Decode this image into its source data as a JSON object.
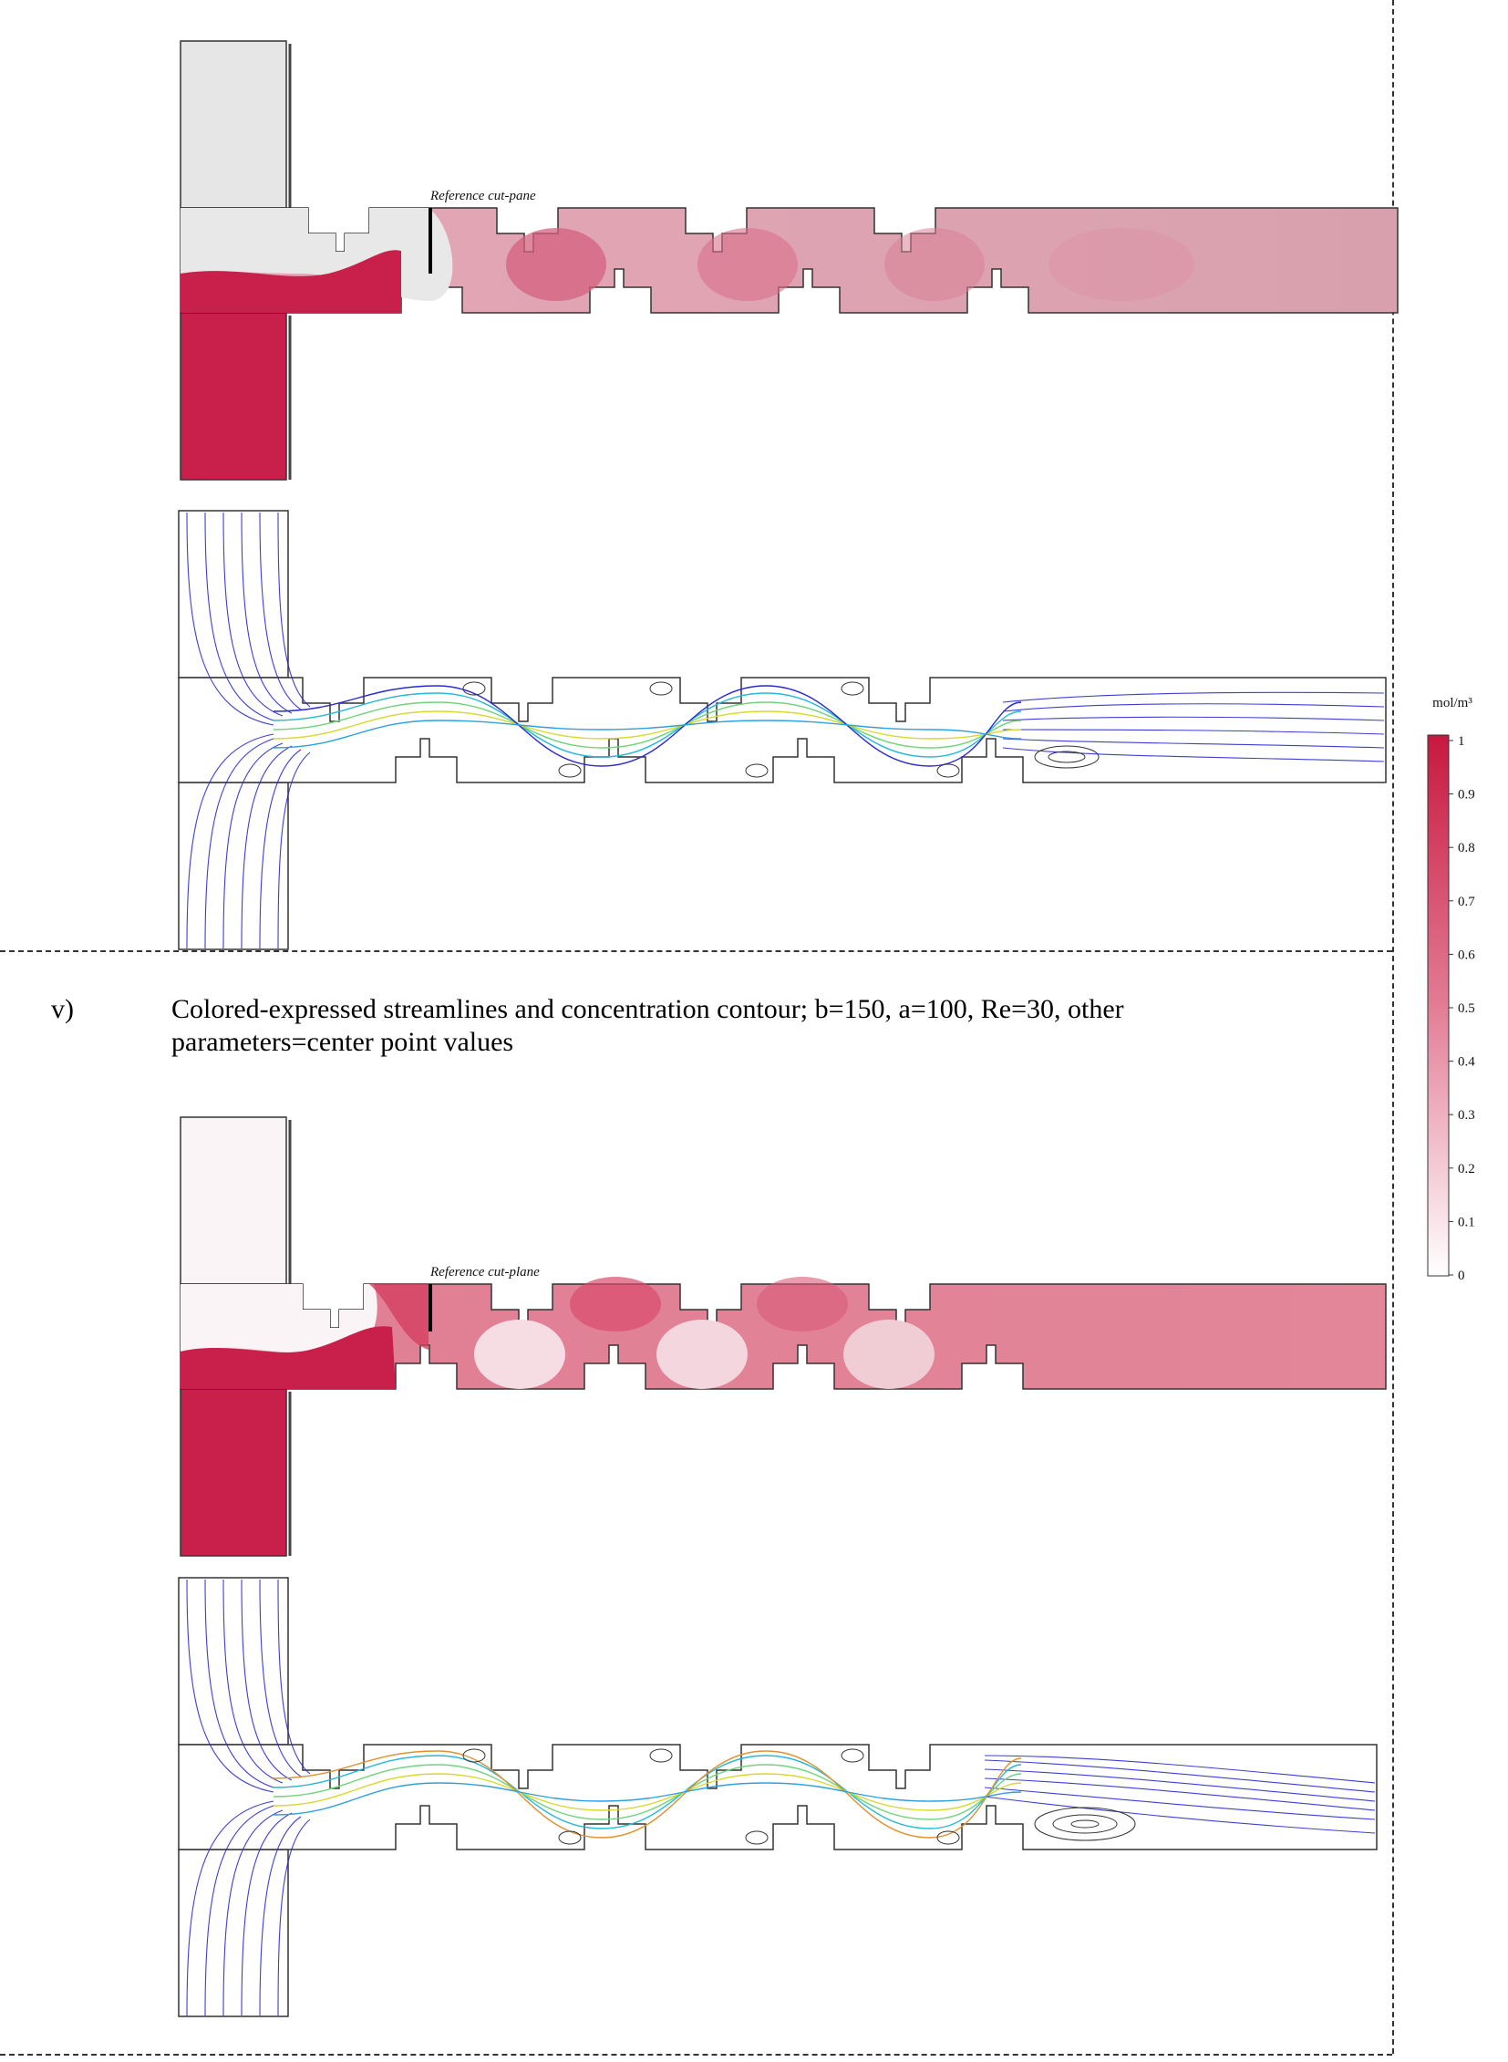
{
  "caption": {
    "label": "v)",
    "text_line1": "Colored-expressed streamlines and concentration contour; b=150, a=100, Re=30, other",
    "text_line2": "parameters=center point values"
  },
  "panels": {
    "top_concentration_label": "Reference cut-pane",
    "bottom_concentration_label": "Reference cut-plane"
  },
  "colorbar": {
    "unit": "mol/m³",
    "ticks": [
      "1",
      "0.9",
      "0.8",
      "0.7",
      "0.6",
      "0.5",
      "0.4",
      "0.3",
      "0.2",
      "0.1",
      "0"
    ],
    "color_max": "#c8183f",
    "color_min": "#ffffff"
  },
  "colors": {
    "concentration_high": "#c8204a",
    "streamline_low": "#1a1acc",
    "streamline_high": "#e0e020"
  }
}
